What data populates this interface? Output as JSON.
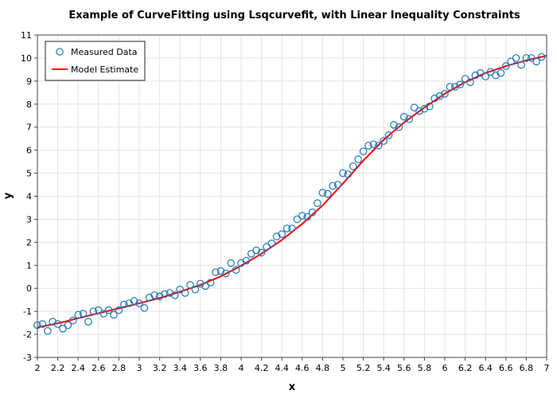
{
  "chart_data": {
    "type": "scatter",
    "title": "Example of CurveFitting using Lsqcurvefit, with Linear Inequality Constraints",
    "xlabel": "x",
    "ylabel": "y",
    "xlim": [
      2,
      7
    ],
    "ylim": [
      -3,
      11
    ],
    "xticks": [
      "2",
      "2.2",
      "2.4",
      "2.6",
      "2.8",
      "3",
      "3.2",
      "3.4",
      "3.6",
      "3.8",
      "4",
      "4.2",
      "4.4",
      "4.6",
      "4.8",
      "5",
      "5.2",
      "5.4",
      "5.6",
      "5.8",
      "6",
      "6.2",
      "6.4",
      "6.6",
      "6.8",
      "7"
    ],
    "yticks": [
      "-3",
      "-2",
      "-1",
      "0",
      "1",
      "2",
      "3",
      "4",
      "5",
      "6",
      "7",
      "8",
      "9",
      "10",
      "11"
    ],
    "grid": true,
    "legend_position": "top-left",
    "series": [
      {
        "name": "Measured Data",
        "marker": "open-circle",
        "color": "#1f77b4",
        "points": [
          [
            2.0,
            -1.6
          ],
          [
            2.05,
            -1.55
          ],
          [
            2.1,
            -1.85
          ],
          [
            2.15,
            -1.45
          ],
          [
            2.2,
            -1.55
          ],
          [
            2.25,
            -1.75
          ],
          [
            2.3,
            -1.6
          ],
          [
            2.35,
            -1.4
          ],
          [
            2.4,
            -1.15
          ],
          [
            2.45,
            -1.1
          ],
          [
            2.5,
            -1.45
          ],
          [
            2.55,
            -1.0
          ],
          [
            2.6,
            -0.95
          ],
          [
            2.65,
            -1.1
          ],
          [
            2.7,
            -0.95
          ],
          [
            2.75,
            -1.15
          ],
          [
            2.8,
            -0.95
          ],
          [
            2.85,
            -0.7
          ],
          [
            2.9,
            -0.65
          ],
          [
            2.95,
            -0.55
          ],
          [
            3.0,
            -0.65
          ],
          [
            3.05,
            -0.85
          ],
          [
            3.1,
            -0.4
          ],
          [
            3.15,
            -0.3
          ],
          [
            3.2,
            -0.35
          ],
          [
            3.25,
            -0.25
          ],
          [
            3.3,
            -0.2
          ],
          [
            3.35,
            -0.3
          ],
          [
            3.4,
            -0.05
          ],
          [
            3.45,
            -0.2
          ],
          [
            3.5,
            0.15
          ],
          [
            3.55,
            -0.05
          ],
          [
            3.6,
            0.2
          ],
          [
            3.65,
            0.1
          ],
          [
            3.7,
            0.25
          ],
          [
            3.75,
            0.7
          ],
          [
            3.8,
            0.75
          ],
          [
            3.85,
            0.65
          ],
          [
            3.9,
            1.1
          ],
          [
            3.95,
            0.8
          ],
          [
            4.0,
            1.1
          ],
          [
            4.05,
            1.2
          ],
          [
            4.1,
            1.5
          ],
          [
            4.15,
            1.65
          ],
          [
            4.2,
            1.55
          ],
          [
            4.25,
            1.8
          ],
          [
            4.3,
            1.95
          ],
          [
            4.35,
            2.25
          ],
          [
            4.4,
            2.35
          ],
          [
            4.45,
            2.6
          ],
          [
            4.5,
            2.6
          ],
          [
            4.55,
            3.0
          ],
          [
            4.6,
            3.15
          ],
          [
            4.65,
            3.1
          ],
          [
            4.7,
            3.3
          ],
          [
            4.75,
            3.7
          ],
          [
            4.8,
            4.15
          ],
          [
            4.85,
            4.1
          ],
          [
            4.9,
            4.45
          ],
          [
            4.95,
            4.5
          ],
          [
            5.0,
            5.0
          ],
          [
            5.05,
            4.95
          ],
          [
            5.1,
            5.3
          ],
          [
            5.15,
            5.6
          ],
          [
            5.2,
            5.95
          ],
          [
            5.25,
            6.2
          ],
          [
            5.3,
            6.25
          ],
          [
            5.35,
            6.2
          ],
          [
            5.4,
            6.4
          ],
          [
            5.45,
            6.65
          ],
          [
            5.5,
            7.1
          ],
          [
            5.55,
            7.0
          ],
          [
            5.6,
            7.45
          ],
          [
            5.65,
            7.35
          ],
          [
            5.7,
            7.85
          ],
          [
            5.75,
            7.7
          ],
          [
            5.8,
            7.8
          ],
          [
            5.85,
            7.9
          ],
          [
            5.9,
            8.25
          ],
          [
            5.95,
            8.35
          ],
          [
            6.0,
            8.45
          ],
          [
            6.05,
            8.75
          ],
          [
            6.1,
            8.75
          ],
          [
            6.15,
            8.85
          ],
          [
            6.2,
            9.1
          ],
          [
            6.25,
            8.95
          ],
          [
            6.3,
            9.25
          ],
          [
            6.35,
            9.35
          ],
          [
            6.4,
            9.2
          ],
          [
            6.45,
            9.4
          ],
          [
            6.5,
            9.25
          ],
          [
            6.55,
            9.35
          ],
          [
            6.6,
            9.65
          ],
          [
            6.65,
            9.85
          ],
          [
            6.7,
            10.0
          ],
          [
            6.75,
            9.7
          ],
          [
            6.8,
            10.0
          ],
          [
            6.85,
            10.0
          ],
          [
            6.9,
            9.85
          ],
          [
            6.95,
            10.05
          ]
        ]
      },
      {
        "name": "Model Estimate",
        "marker": "line",
        "color": "#ff0000",
        "points": [
          [
            2.0,
            -1.7
          ],
          [
            2.2,
            -1.52
          ],
          [
            2.4,
            -1.3
          ],
          [
            2.6,
            -1.08
          ],
          [
            2.8,
            -0.87
          ],
          [
            3.0,
            -0.65
          ],
          [
            3.2,
            -0.42
          ],
          [
            3.4,
            -0.15
          ],
          [
            3.6,
            0.15
          ],
          [
            3.8,
            0.52
          ],
          [
            4.0,
            0.98
          ],
          [
            4.2,
            1.5
          ],
          [
            4.4,
            2.1
          ],
          [
            4.6,
            2.8
          ],
          [
            4.8,
            3.6
          ],
          [
            5.0,
            4.55
          ],
          [
            5.2,
            5.55
          ],
          [
            5.4,
            6.45
          ],
          [
            5.6,
            7.2
          ],
          [
            5.8,
            7.85
          ],
          [
            6.0,
            8.45
          ],
          [
            6.2,
            8.95
          ],
          [
            6.4,
            9.35
          ],
          [
            6.6,
            9.65
          ],
          [
            6.8,
            9.9
          ],
          [
            7.0,
            10.1
          ]
        ]
      }
    ]
  }
}
